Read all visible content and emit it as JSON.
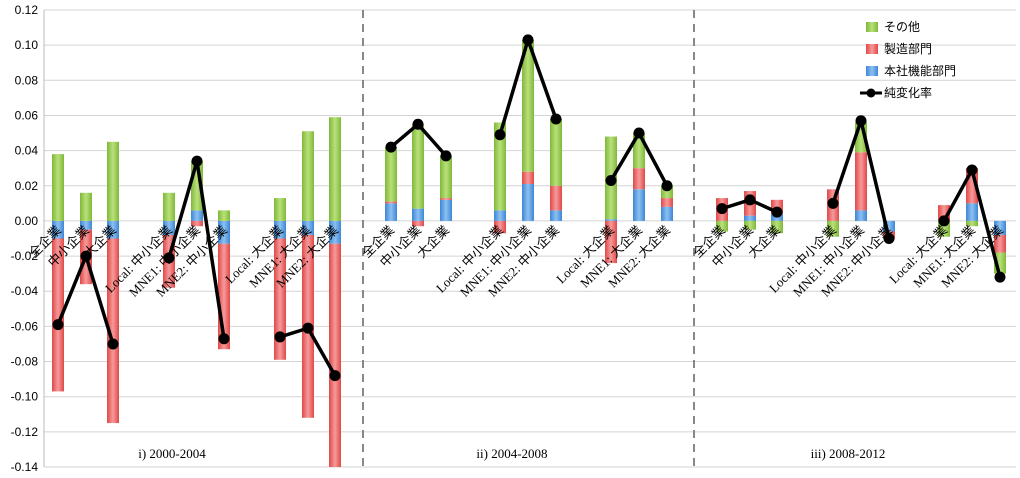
{
  "chart_data": {
    "type": "bar",
    "stacked": true,
    "ylim": [
      -0.14,
      0.12
    ],
    "y_ticks": [
      "0.12",
      "0.10",
      "0.08",
      "0.06",
      "0.04",
      "0.02",
      "0.00",
      "-0.02",
      "-0.04",
      "-0.06",
      "-0.08",
      "-0.10",
      "-0.12",
      "-0.14"
    ],
    "grid": true,
    "legend_position": "top-right",
    "colors": {
      "other": "#9acd4f",
      "manufacturing": "#ef6060",
      "hq": "#5b9be0",
      "net": "#000000",
      "divider": "#888888"
    },
    "legend": {
      "other": "その他",
      "manufacturing": "製造部門",
      "hq": "本社機能部門",
      "net": "純変化率"
    },
    "panels": [
      {
        "title": "i) 2000-2004",
        "categories": [
          "全企業",
          "中小企業",
          "大企業",
          "Local: 中小企業",
          "MNE1: 中小企業",
          "MNE2: 中小企業",
          "Local: 大企業",
          "MNE1: 大企業",
          "MNE2: 大企業"
        ],
        "series": {
          "hq": [
            -0.01,
            -0.005,
            -0.01,
            -0.008,
            0.006,
            -0.013,
            -0.01,
            -0.008,
            -0.013
          ],
          "manufacturing": [
            -0.087,
            -0.031,
            -0.105,
            -0.03,
            -0.003,
            -0.06,
            -0.069,
            -0.104,
            -0.127
          ],
          "other": [
            0.038,
            0.016,
            0.045,
            0.016,
            0.028,
            0.006,
            0.013,
            0.051,
            0.059
          ]
        },
        "net": [
          -0.059,
          -0.02,
          -0.07,
          -0.021,
          0.034,
          -0.067,
          -0.066,
          -0.061,
          -0.088
        ]
      },
      {
        "title": "ii) 2004-2008",
        "categories": [
          "全企業",
          "中小企業",
          "大企業",
          "Local: 中小企業",
          "MNE1: 中小企業",
          "MNE2: 中小企業",
          "Local: 大企業",
          "MNE1: 大企業",
          "MNE2: 大企業"
        ],
        "series": {
          "hq": [
            0.01,
            0.007,
            0.012,
            0.006,
            0.021,
            0.006,
            0.001,
            0.018,
            0.008
          ],
          "manufacturing": [
            0.001,
            -0.003,
            0.001,
            -0.007,
            0.007,
            0.014,
            -0.024,
            0.012,
            0.005
          ],
          "other": [
            0.031,
            0.048,
            0.024,
            0.05,
            0.075,
            0.038,
            0.047,
            0.02,
            0.007
          ]
        },
        "net": [
          0.042,
          0.055,
          0.037,
          0.049,
          0.103,
          0.058,
          0.023,
          0.05,
          0.02
        ]
      },
      {
        "title": "iii) 2008-2012",
        "categories": [
          "全企業",
          "中小企業",
          "大企業",
          "Local: 中小企業",
          "MNE1: 中小企業",
          "MNE2: 中小企業",
          "Local: 大企業",
          "MNE1: 大企業",
          "MNE2: 大企業"
        ],
        "series": {
          "hq": [
            0.0,
            0.003,
            0.004,
            0.0,
            0.006,
            -0.006,
            0.0,
            0.01,
            -0.008
          ],
          "manufacturing": [
            0.013,
            0.014,
            0.008,
            0.018,
            0.033,
            -0.004,
            0.009,
            0.02,
            -0.01
          ],
          "other": [
            -0.006,
            -0.005,
            -0.007,
            -0.009,
            0.017,
            0.0,
            -0.009,
            -0.003,
            -0.012
          ]
        },
        "net": [
          0.007,
          0.012,
          0.005,
          0.01,
          0.057,
          -0.01,
          0.0,
          0.029,
          -0.032
        ]
      }
    ]
  }
}
